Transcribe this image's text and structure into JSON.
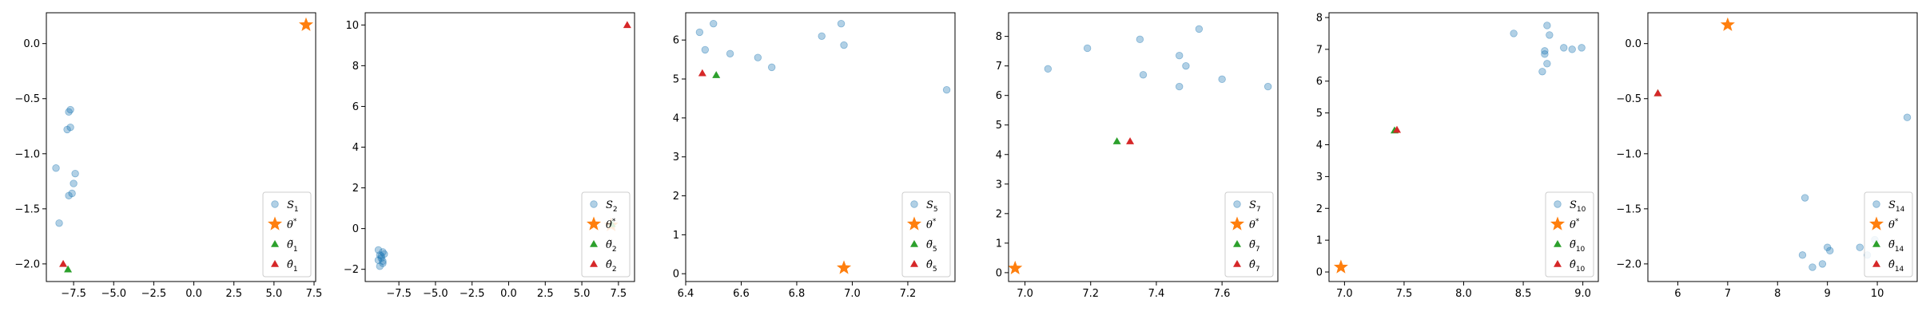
{
  "colors": {
    "sample": "#1f77b4",
    "star": "#ff7f0e",
    "tilde": "#2ca02c",
    "hat": "#d62728"
  },
  "chart_data": [
    {
      "type": "scatter",
      "xlim": [
        -9.2,
        7.6
      ],
      "ylim": [
        -2.16,
        0.28
      ],
      "xticks": [
        -7.5,
        -5.0,
        -2.5,
        0.0,
        2.5,
        5.0,
        7.5
      ],
      "xtick_labels": [
        "−7.5",
        "−5.0",
        "−2.5",
        "0.0",
        "2.5",
        "5.0",
        "7.5"
      ],
      "yticks": [
        -2.0,
        -1.5,
        -1.0,
        -0.5,
        0.0
      ],
      "ytick_labels": [
        "−2.0",
        "−1.5",
        "−1.0",
        "−0.5",
        "0.0"
      ],
      "legend_position": "lower-right",
      "legend": [
        {
          "base": "S",
          "sub": "1"
        },
        {
          "base": "θ",
          "sup": "*"
        },
        {
          "base": "θ̃",
          "sub": "1"
        },
        {
          "base": "θ̂",
          "sub": "1"
        }
      ],
      "samples": [
        [
          -7.7,
          -0.6
        ],
        [
          -7.8,
          -0.62
        ],
        [
          -7.9,
          -0.78
        ],
        [
          -7.7,
          -0.76
        ],
        [
          -8.6,
          -1.13
        ],
        [
          -7.4,
          -1.18
        ],
        [
          -7.5,
          -1.27
        ],
        [
          -7.6,
          -1.36
        ],
        [
          -7.8,
          -1.38
        ],
        [
          -8.4,
          -1.63
        ]
      ],
      "theta_star": [
        7.0,
        0.17
      ],
      "theta_tilde": [
        -7.85,
        -2.05
      ],
      "theta_hat": [
        -8.15,
        -2.0
      ]
    },
    {
      "type": "scatter",
      "xlim": [
        -9.8,
        8.6
      ],
      "ylim": [
        -2.6,
        10.6
      ],
      "xticks": [
        -7.5,
        -5.0,
        -2.5,
        0.0,
        2.5,
        5.0,
        7.5
      ],
      "xtick_labels": [
        "−7.5",
        "−5.0",
        "−2.5",
        "0.0",
        "2.5",
        "5.0",
        "7.5"
      ],
      "yticks": [
        -2,
        0,
        2,
        4,
        6,
        8,
        10
      ],
      "ytick_labels": [
        "−2",
        "0",
        "2",
        "4",
        "6",
        "8",
        "10"
      ],
      "legend_position": "lower-right",
      "legend": [
        {
          "base": "S",
          "sub": "2"
        },
        {
          "base": "θ",
          "sup": "*"
        },
        {
          "base": "θ̃",
          "sub": "2"
        },
        {
          "base": "θ̂",
          "sub": "2"
        }
      ],
      "samples": [
        [
          -8.9,
          -1.05
        ],
        [
          -8.6,
          -1.15
        ],
        [
          -8.8,
          -1.3
        ],
        [
          -8.7,
          -1.45
        ],
        [
          -8.5,
          -1.25
        ],
        [
          -8.9,
          -1.55
        ],
        [
          -8.6,
          -1.7
        ],
        [
          -8.8,
          -1.85
        ],
        [
          -8.7,
          -1.35
        ],
        [
          -8.6,
          -1.6
        ]
      ],
      "theta_star": [
        7.0,
        0.17
      ],
      "theta_tilde": [
        7.05,
        0.22
      ],
      "theta_hat": [
        8.1,
        10.0
      ]
    },
    {
      "type": "scatter",
      "xlim": [
        6.4,
        7.37
      ],
      "ylim": [
        -0.2,
        6.7
      ],
      "xticks": [
        6.4,
        6.6,
        6.8,
        7.0,
        7.2
      ],
      "xtick_labels": [
        "6.4",
        "6.6",
        "6.8",
        "7.0",
        "7.2"
      ],
      "yticks": [
        0,
        1,
        2,
        3,
        4,
        5,
        6
      ],
      "ytick_labels": [
        "0",
        "1",
        "2",
        "3",
        "4",
        "5",
        "6"
      ],
      "legend_position": "lower-right",
      "legend": [
        {
          "base": "S",
          "sub": "5"
        },
        {
          "base": "θ",
          "sup": "*"
        },
        {
          "base": "θ̃",
          "sub": "5"
        },
        {
          "base": "θ̂",
          "sub": "5"
        }
      ],
      "samples": [
        [
          6.45,
          6.2
        ],
        [
          6.5,
          6.42
        ],
        [
          6.47,
          5.75
        ],
        [
          6.56,
          5.65
        ],
        [
          6.66,
          5.55
        ],
        [
          6.71,
          5.3
        ],
        [
          6.89,
          6.1
        ],
        [
          6.96,
          6.42
        ],
        [
          6.97,
          5.87
        ],
        [
          7.34,
          4.72
        ]
      ],
      "theta_star": [
        6.97,
        0.15
      ],
      "theta_tilde": [
        6.51,
        5.1
      ],
      "theta_hat": [
        6.46,
        5.15
      ]
    },
    {
      "type": "scatter",
      "xlim": [
        6.95,
        7.77
      ],
      "ylim": [
        -0.3,
        8.8
      ],
      "xticks": [
        7.0,
        7.2,
        7.4,
        7.6
      ],
      "xtick_labels": [
        "7.0",
        "7.2",
        "7.4",
        "7.6"
      ],
      "yticks": [
        0,
        1,
        2,
        3,
        4,
        5,
        6,
        7,
        8
      ],
      "ytick_labels": [
        "0",
        "1",
        "2",
        "3",
        "4",
        "5",
        "6",
        "7",
        "8"
      ],
      "legend_position": "lower-right",
      "legend": [
        {
          "base": "S",
          "sub": "7"
        },
        {
          "base": "θ",
          "sup": "*"
        },
        {
          "base": "θ̃",
          "sub": "7"
        },
        {
          "base": "θ̂",
          "sub": "7"
        }
      ],
      "samples": [
        [
          7.07,
          6.9
        ],
        [
          7.19,
          7.6
        ],
        [
          7.35,
          7.9
        ],
        [
          7.36,
          6.7
        ],
        [
          7.47,
          7.35
        ],
        [
          7.49,
          7.0
        ],
        [
          7.53,
          8.25
        ],
        [
          7.47,
          6.3
        ],
        [
          7.6,
          6.55
        ],
        [
          7.74,
          6.3
        ]
      ],
      "theta_star": [
        6.97,
        0.15
      ],
      "theta_tilde": [
        7.28,
        4.45
      ],
      "theta_hat": [
        7.32,
        4.45
      ]
    },
    {
      "type": "scatter",
      "xlim": [
        6.87,
        9.13
      ],
      "ylim": [
        -0.3,
        8.15
      ],
      "xticks": [
        7.0,
        7.5,
        8.0,
        8.5,
        9.0
      ],
      "xtick_labels": [
        "7.0",
        "7.5",
        "8.0",
        "8.5",
        "9.0"
      ],
      "yticks": [
        0,
        1,
        2,
        3,
        4,
        5,
        6,
        7,
        8
      ],
      "ytick_labels": [
        "0",
        "1",
        "2",
        "3",
        "4",
        "5",
        "6",
        "7",
        "8"
      ],
      "legend_position": "lower-right",
      "legend": [
        {
          "base": "S",
          "sub": "10"
        },
        {
          "base": "θ",
          "sup": "*"
        },
        {
          "base": "θ̃",
          "sub": "10"
        },
        {
          "base": "θ̂",
          "sub": "10"
        }
      ],
      "samples": [
        [
          8.42,
          7.5
        ],
        [
          8.7,
          7.75
        ],
        [
          8.72,
          7.45
        ],
        [
          8.68,
          6.95
        ],
        [
          8.68,
          6.85
        ],
        [
          8.66,
          6.3
        ],
        [
          8.7,
          6.55
        ],
        [
          8.84,
          7.05
        ],
        [
          8.91,
          7.0
        ],
        [
          8.99,
          7.05
        ]
      ],
      "theta_star": [
        6.97,
        0.15
      ],
      "theta_tilde": [
        7.42,
        4.45
      ],
      "theta_hat": [
        7.44,
        4.47
      ]
    },
    {
      "type": "scatter",
      "xlim": [
        5.4,
        10.8
      ],
      "ylim": [
        -2.16,
        0.28
      ],
      "xticks": [
        6,
        7,
        8,
        9,
        10
      ],
      "xtick_labels": [
        "6",
        "7",
        "8",
        "9",
        "10"
      ],
      "yticks": [
        -2.0,
        -1.5,
        -1.0,
        -0.5,
        0.0
      ],
      "ytick_labels": [
        "−2.0",
        "−1.5",
        "−1.0",
        "−0.5",
        "0.0"
      ],
      "legend_position": "lower-right",
      "legend": [
        {
          "base": "S",
          "sub": "14"
        },
        {
          "base": "θ",
          "sup": "*"
        },
        {
          "base": "θ̃",
          "sub": "14"
        },
        {
          "base": "θ̂",
          "sub": "14"
        }
      ],
      "samples": [
        [
          10.6,
          -0.67
        ],
        [
          8.55,
          -1.4
        ],
        [
          8.5,
          -1.92
        ],
        [
          8.7,
          -2.03
        ],
        [
          8.9,
          -2.0
        ],
        [
          9.0,
          -1.85
        ],
        [
          9.05,
          -1.88
        ],
        [
          9.65,
          -1.85
        ],
        [
          9.8,
          -1.92
        ],
        [
          9.95,
          -1.78
        ]
      ],
      "theta_star": [
        7.0,
        0.17
      ],
      "theta_tilde": [
        5.6,
        -0.45
      ],
      "theta_hat": [
        5.6,
        -0.45
      ]
    }
  ]
}
